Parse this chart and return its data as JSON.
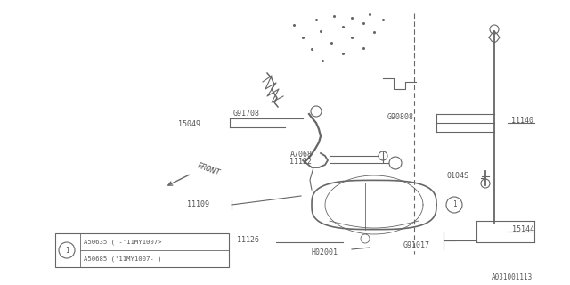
{
  "bg_color": "#ffffff",
  "line_color": "#666666",
  "text_color": "#555555",
  "diagram_code": "A031001113",
  "fig_width": 6.4,
  "fig_height": 3.2,
  "dpi": 100,
  "legend_row1": "A50635 （ -’11MY1007）",
  "legend_row2": "A50685 （’11MY1007- ）",
  "legend_row1_plain": "A50635 ( -'11MY1007>",
  "legend_row2_plain": "A50685 ('11MY1007- )"
}
